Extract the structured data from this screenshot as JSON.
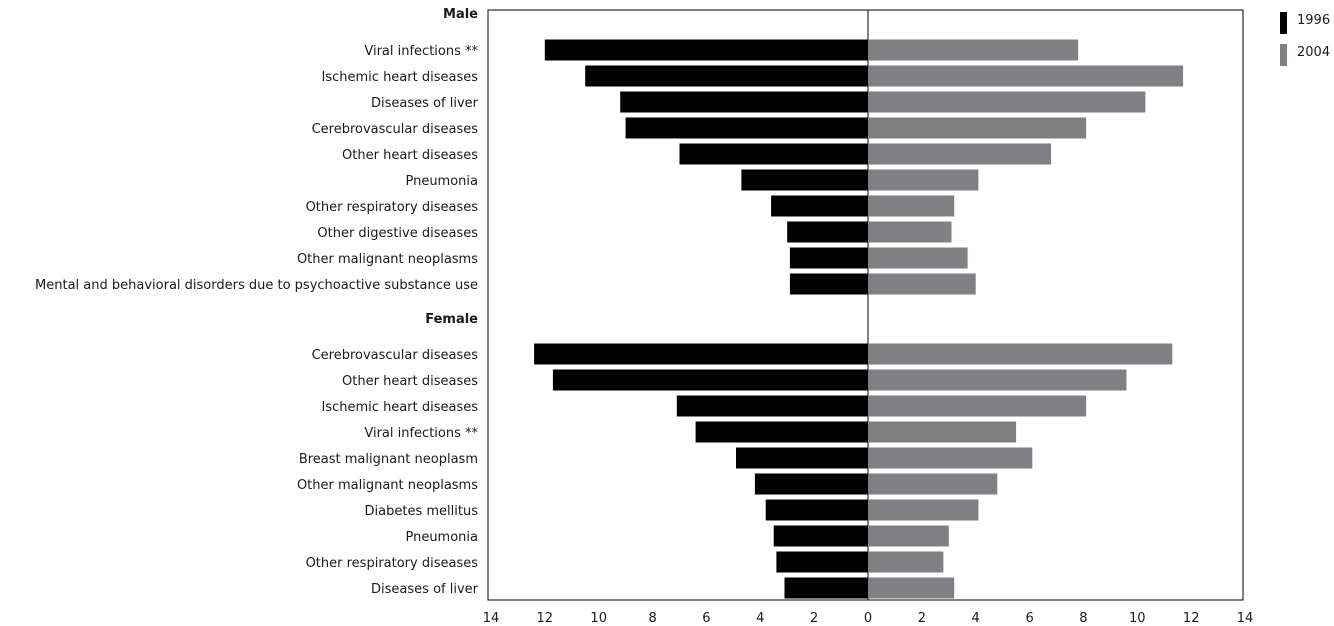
{
  "chart_data": {
    "type": "bar",
    "orientation": "horizontal-diverging",
    "x_ticks": [
      "14",
      "12",
      "10",
      "8",
      "6",
      "4",
      "2",
      "0",
      "2",
      "4",
      "6",
      "8",
      "10",
      "12",
      "14"
    ],
    "xlim": [
      -14,
      14
    ],
    "legend": [
      {
        "name": "1996",
        "color": "#000000"
      },
      {
        "name": "2004",
        "color": "#808084"
      }
    ],
    "legend_position": "top-right",
    "groups": [
      {
        "label": "Male",
        "categories": [
          "Viral infections **",
          "Ischemic heart diseases",
          "Diseases of liver",
          "Cerebrovascular diseases",
          "Other heart diseases",
          "Pneumonia",
          "Other respiratory diseases",
          "Other digestive diseases",
          "Other malignant neoplasms",
          "Mental and behavioral disorders due to psychoactive substance use"
        ],
        "series": [
          {
            "name": "1996",
            "values": [
              12.0,
              10.5,
              9.2,
              9.0,
              7.0,
              4.7,
              3.6,
              3.0,
              2.9,
              2.9
            ]
          },
          {
            "name": "2004",
            "values": [
              7.8,
              11.7,
              10.3,
              8.1,
              6.8,
              4.1,
              3.2,
              3.1,
              3.7,
              4.0
            ]
          }
        ]
      },
      {
        "label": "Female",
        "categories": [
          "Cerebrovascular diseases",
          "Other heart diseases",
          "Ischemic heart diseases",
          "Viral infections **",
          "Breast malignant neoplasm",
          "Other malignant neoplasms",
          "Diabetes mellitus",
          "Pneumonia",
          "Other respiratory diseases",
          "Diseases of liver"
        ],
        "series": [
          {
            "name": "1996",
            "values": [
              12.4,
              11.7,
              7.1,
              6.4,
              4.9,
              4.2,
              3.8,
              3.5,
              3.4,
              3.1
            ]
          },
          {
            "name": "2004",
            "values": [
              11.3,
              9.6,
              8.1,
              5.5,
              6.1,
              4.8,
              4.1,
              3.0,
              2.8,
              3.2
            ]
          }
        ]
      }
    ]
  }
}
